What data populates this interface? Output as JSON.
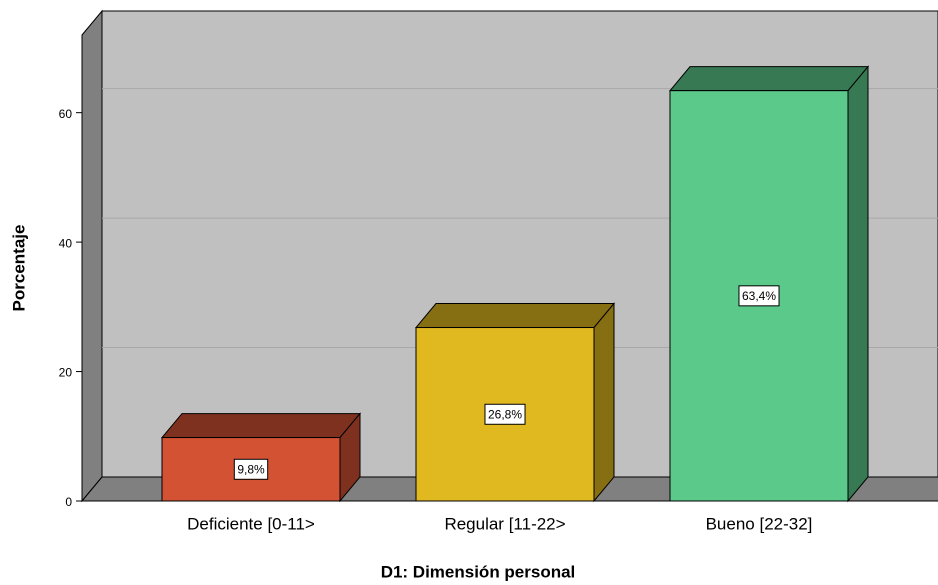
{
  "chart_data": {
    "type": "bar",
    "xlabel": "D1: Dimensión personal",
    "ylabel": "Porcentaje",
    "categories": [
      "Deficiente [0-11>",
      "Regular [11-22>",
      "Bueno [22-32]"
    ],
    "values": [
      9.8,
      26.8,
      63.4
    ],
    "value_labels": [
      "9,8%",
      "26,8%",
      "63,4%"
    ],
    "colors": [
      "#d35233",
      "#e0b820",
      "#5ac98a"
    ],
    "ylim": [
      0,
      72
    ],
    "yticks": [
      0,
      20,
      40,
      60
    ],
    "grid": true
  }
}
